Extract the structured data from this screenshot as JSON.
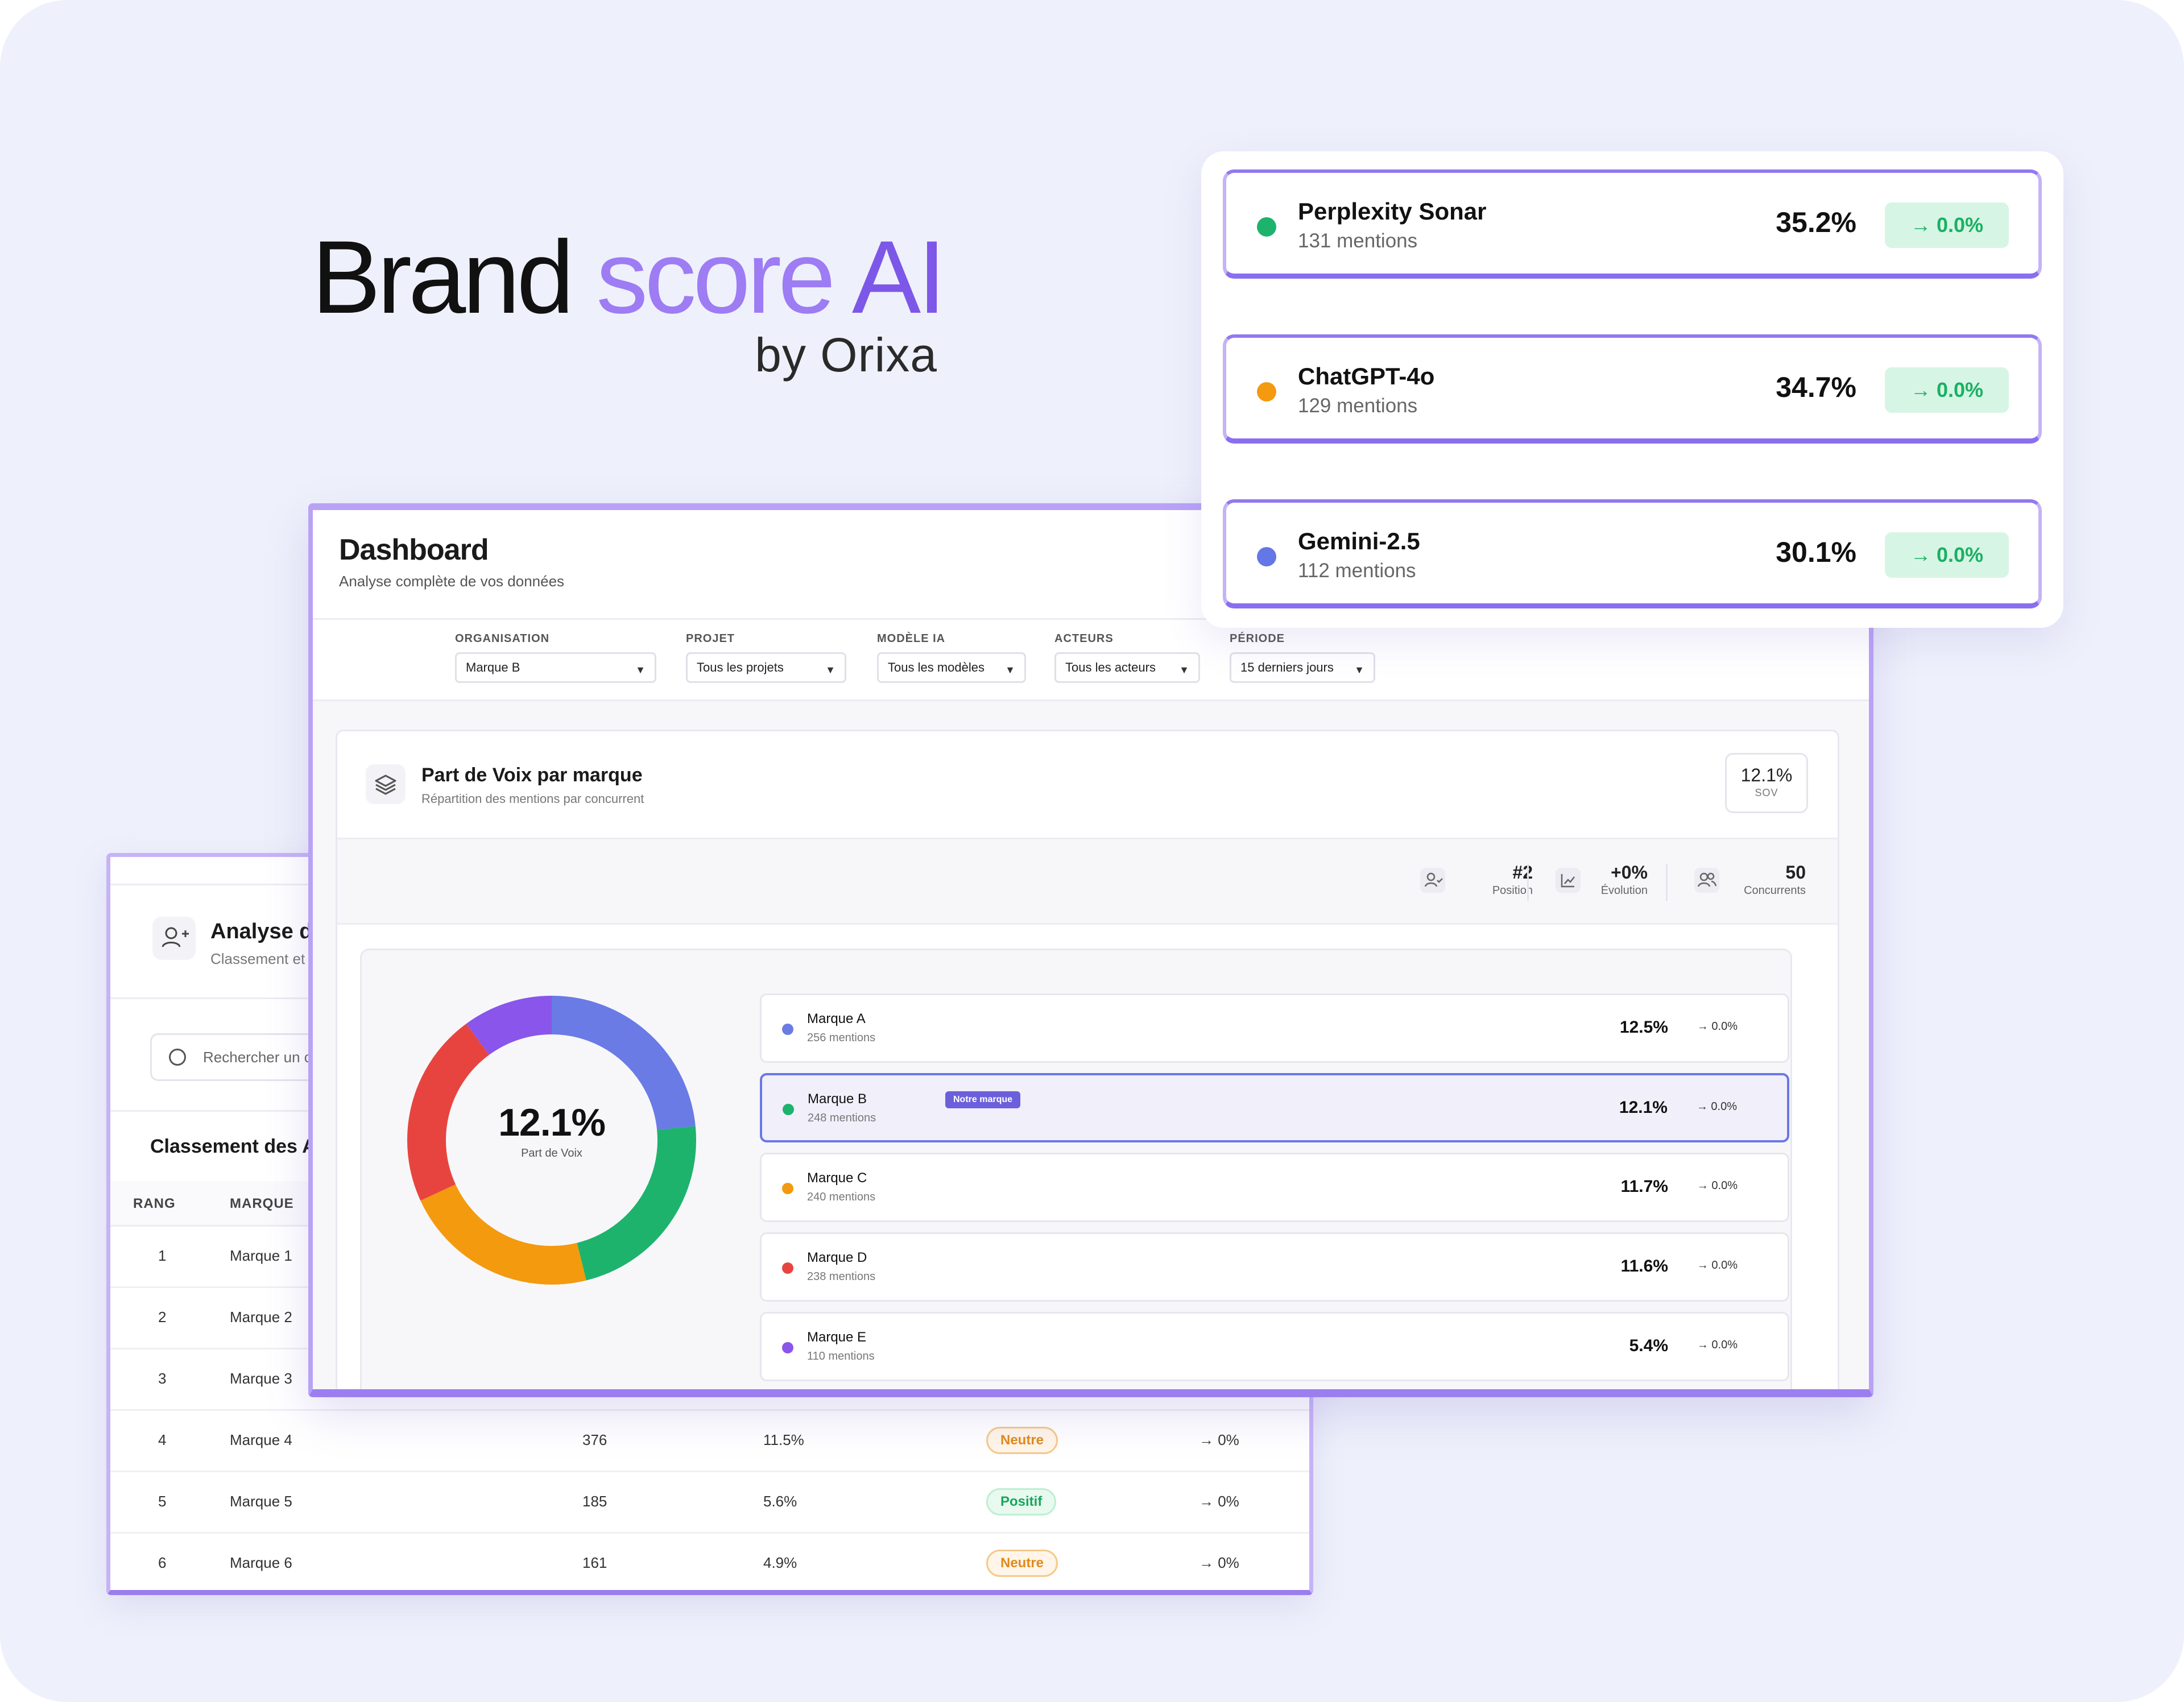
{
  "logo": {
    "word_brand": "Brand",
    "word_score": "score",
    "word_ai": "AI",
    "byline": "by Orixa"
  },
  "models": [
    {
      "name": "Perplexity Sonar",
      "mentions": "131 mentions",
      "percent": "35.2%",
      "delta": "→ 0.0%",
      "color": "#1db36d"
    },
    {
      "name": "ChatGPT-4o",
      "mentions": "129 mentions",
      "percent": "34.7%",
      "delta": "→ 0.0%",
      "color": "#f39a0e"
    },
    {
      "name": "Gemini-2.5",
      "mentions": "112 mentions",
      "percent": "30.1%",
      "delta": "→ 0.0%",
      "color": "#6378e6"
    }
  ],
  "dashboard": {
    "title": "Dashboard",
    "subtitle": "Analyse complète de vos données",
    "filters": [
      {
        "label": "ORGANISATION",
        "value": "Marque B"
      },
      {
        "label": "PROJET",
        "value": "Tous les projets"
      },
      {
        "label": "MODÈLE IA",
        "value": "Tous les modèles"
      },
      {
        "label": "ACTEURS",
        "value": "Tous les acteurs"
      },
      {
        "label": "PÉRIODE",
        "value": "15 derniers jours"
      }
    ],
    "caret": "▼"
  },
  "sov": {
    "title": "Part de Voix par marque",
    "subtitle": "Répartition des mentions par concurrent",
    "pill_value": "12.1%",
    "pill_label": "SOV",
    "stats": [
      {
        "value": "#2",
        "label": "Position"
      },
      {
        "value": "+0%",
        "label": "Évolution"
      },
      {
        "value": "50",
        "label": "Concurrents"
      }
    ],
    "donut_value": "12.1%",
    "donut_label": "Part de Voix",
    "brands": [
      {
        "name": "Marque A",
        "mentions": "256 mentions",
        "percent": "12.5%",
        "delta": "→ 0.0%",
        "color": "#6a7be6",
        "highlight": false,
        "tag": ""
      },
      {
        "name": "Marque B",
        "mentions": "248 mentions",
        "percent": "12.1%",
        "delta": "→ 0.0%",
        "color": "#1db36d",
        "highlight": true,
        "tag": "Notre marque"
      },
      {
        "name": "Marque C",
        "mentions": "240 mentions",
        "percent": "11.7%",
        "delta": "→ 0.0%",
        "color": "#f39a0e",
        "highlight": false,
        "tag": ""
      },
      {
        "name": "Marque D",
        "mentions": "238 mentions",
        "percent": "11.6%",
        "delta": "→ 0.0%",
        "color": "#e8443f",
        "highlight": false,
        "tag": ""
      },
      {
        "name": "Marque E",
        "mentions": "110 mentions",
        "percent": "5.4%",
        "delta": "→ 0.0%",
        "color": "#8a55ea",
        "highlight": false,
        "tag": ""
      }
    ]
  },
  "chart_data": {
    "type": "pie",
    "categories": [
      "Marque A",
      "Marque B",
      "Marque C",
      "Marque D",
      "Marque E"
    ],
    "values": [
      256,
      248,
      240,
      238,
      110
    ],
    "colors": [
      "#6a7be6",
      "#1db36d",
      "#f39a0e",
      "#e8443f",
      "#8a55ea"
    ],
    "center_value": "12.1%",
    "center_label": "Part de Voix"
  },
  "competitors": {
    "title": "Analyse de",
    "subtitle": "Classement et",
    "search_placeholder": "Rechercher un c",
    "section_title": "Classement des A",
    "columns": {
      "rank": "RANG",
      "brand": "MARQUE"
    },
    "rows": [
      {
        "rank": "1",
        "brand": "Marque 1",
        "mentions": "",
        "share": "",
        "sentiment": "",
        "trend": ""
      },
      {
        "rank": "2",
        "brand": "Marque 2",
        "mentions": "",
        "share": "",
        "sentiment": "",
        "trend": ""
      },
      {
        "rank": "3",
        "brand": "Marque 3",
        "mentions": "",
        "share": "",
        "sentiment": "",
        "trend": ""
      },
      {
        "rank": "4",
        "brand": "Marque 4",
        "mentions": "376",
        "share": "11.5%",
        "sentiment": "Neutre",
        "trend": "→ 0%"
      },
      {
        "rank": "5",
        "brand": "Marque 5",
        "mentions": "185",
        "share": "5.6%",
        "sentiment": "Positif",
        "trend": "→ 0%"
      },
      {
        "rank": "6",
        "brand": "Marque 6",
        "mentions": "161",
        "share": "4.9%",
        "sentiment": "Neutre",
        "trend": "→ 0%"
      }
    ]
  }
}
